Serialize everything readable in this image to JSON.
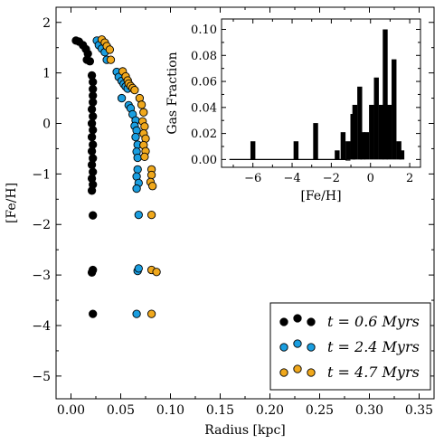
{
  "chart_data": [
    {
      "type": "scatter",
      "xlabel": "Radius [kpc]",
      "ylabel": "[Fe/H]",
      "xlim": [
        -0.015,
        0.365
      ],
      "ylim": [
        -5.45,
        2.3
      ],
      "xticks": [
        "0.00",
        "0.05",
        "0.10",
        "0.15",
        "0.20",
        "0.25",
        "0.30",
        "0.35"
      ],
      "yticks": [
        "−5",
        "−4",
        "−3",
        "−2",
        "−1",
        "0",
        "1",
        "2"
      ],
      "legend_position": "bottom-right",
      "series": [
        {
          "name": "t = 0.6 Myrs",
          "color": "#000000",
          "points": [
            [
              0.005,
              1.64
            ],
            [
              0.008,
              1.62
            ],
            [
              0.012,
              1.55
            ],
            [
              0.015,
              1.47
            ],
            [
              0.017,
              1.38
            ],
            [
              0.016,
              1.26
            ],
            [
              0.019,
              1.23
            ],
            [
              0.021,
              0.95
            ],
            [
              0.022,
              0.82
            ],
            [
              0.022,
              0.68
            ],
            [
              0.022,
              0.55
            ],
            [
              0.022,
              0.42
            ],
            [
              0.021,
              0.28
            ],
            [
              0.022,
              0.14
            ],
            [
              0.021,
              0.0
            ],
            [
              0.022,
              -0.13
            ],
            [
              0.021,
              -0.27
            ],
            [
              0.022,
              -0.42
            ],
            [
              0.021,
              -0.55
            ],
            [
              0.022,
              -0.69
            ],
            [
              0.021,
              -0.82
            ],
            [
              0.022,
              -0.96
            ],
            [
              0.021,
              -1.09
            ],
            [
              0.022,
              -1.21
            ],
            [
              0.021,
              -1.33
            ],
            [
              0.022,
              -1.82
            ],
            [
              0.022,
              -2.9
            ],
            [
              0.021,
              -2.95
            ],
            [
              0.022,
              -3.77
            ]
          ]
        },
        {
          "name": "t = 2.4 Myrs",
          "color": "#1a9ee0",
          "points": [
            [
              0.026,
              1.64
            ],
            [
              0.028,
              1.55
            ],
            [
              0.031,
              1.48
            ],
            [
              0.034,
              1.41
            ],
            [
              0.036,
              1.26
            ],
            [
              0.046,
              1.02
            ],
            [
              0.048,
              0.92
            ],
            [
              0.051,
              0.84
            ],
            [
              0.053,
              0.78
            ],
            [
              0.055,
              0.73
            ],
            [
              0.057,
              0.69
            ],
            [
              0.051,
              0.5
            ],
            [
              0.058,
              0.36
            ],
            [
              0.06,
              0.3
            ],
            [
              0.062,
              0.18
            ],
            [
              0.065,
              0.06
            ],
            [
              0.064,
              -0.05
            ],
            [
              0.066,
              -0.14
            ],
            [
              0.065,
              -0.27
            ],
            [
              0.067,
              -0.42
            ],
            [
              0.066,
              -0.56
            ],
            [
              0.067,
              -0.68
            ],
            [
              0.067,
              -0.91
            ],
            [
              0.066,
              -1.05
            ],
            [
              0.068,
              -1.18
            ],
            [
              0.066,
              -1.29
            ],
            [
              0.068,
              -1.81
            ],
            [
              0.067,
              -2.92
            ],
            [
              0.068,
              -2.87
            ],
            [
              0.066,
              -3.77
            ]
          ]
        },
        {
          "name": "t = 4.7 Myrs",
          "color": "#f0a81c",
          "points": [
            [
              0.031,
              1.66
            ],
            [
              0.034,
              1.6
            ],
            [
              0.036,
              1.53
            ],
            [
              0.039,
              1.46
            ],
            [
              0.04,
              1.26
            ],
            [
              0.052,
              1.03
            ],
            [
              0.055,
              0.93
            ],
            [
              0.057,
              0.85
            ],
            [
              0.058,
              0.79
            ],
            [
              0.06,
              0.74
            ],
            [
              0.062,
              0.7
            ],
            [
              0.064,
              0.66
            ],
            [
              0.069,
              0.5
            ],
            [
              0.071,
              0.37
            ],
            [
              0.073,
              0.22
            ],
            [
              0.072,
              0.04
            ],
            [
              0.074,
              -0.06
            ],
            [
              0.073,
              -0.2
            ],
            [
              0.075,
              -0.3
            ],
            [
              0.073,
              -0.43
            ],
            [
              0.075,
              -0.55
            ],
            [
              0.074,
              -0.66
            ],
            [
              0.081,
              -0.91
            ],
            [
              0.081,
              -1.02
            ],
            [
              0.08,
              -1.16
            ],
            [
              0.082,
              -1.24
            ],
            [
              0.081,
              -1.81
            ],
            [
              0.081,
              -2.9
            ],
            [
              0.086,
              -2.94
            ],
            [
              0.081,
              -3.77
            ]
          ]
        }
      ]
    },
    {
      "type": "bar",
      "xlabel": "[Fe/H]",
      "ylabel": "Gas Fraction",
      "xlim": [
        -7.6,
        2.55
      ],
      "ylim": [
        -0.006,
        0.108
      ],
      "xticks": [
        "−6",
        "−4",
        "−2",
        "0",
        "2"
      ],
      "yticks": [
        "0.00",
        "0.02",
        "0.04",
        "0.06",
        "0.08",
        "0.10"
      ],
      "bin_width": 0.25,
      "bars": [
        [
          -6.0,
          0.014
        ],
        [
          -3.8,
          0.014
        ],
        [
          -2.8,
          0.028
        ],
        [
          -1.7,
          0.007
        ],
        [
          -1.4,
          0.021
        ],
        [
          -1.15,
          0.0
        ],
        [
          -1.15,
          0.014
        ],
        [
          -0.9,
          0.035
        ],
        [
          -0.8,
          0.042
        ],
        [
          -0.55,
          0.056
        ],
        [
          -0.4,
          0.021
        ],
        [
          -0.2,
          0.021
        ],
        [
          0.05,
          0.042
        ],
        [
          0.3,
          0.063
        ],
        [
          0.55,
          0.042
        ],
        [
          0.75,
          0.1
        ],
        [
          0.95,
          0.042
        ],
        [
          1.2,
          0.077
        ],
        [
          1.45,
          0.014
        ],
        [
          1.6,
          0.007
        ]
      ]
    }
  ],
  "legend": {
    "entries": [
      "t = 0.6 Myrs",
      "t = 2.4 Myrs",
      "t = 4.7 Myrs"
    ]
  }
}
